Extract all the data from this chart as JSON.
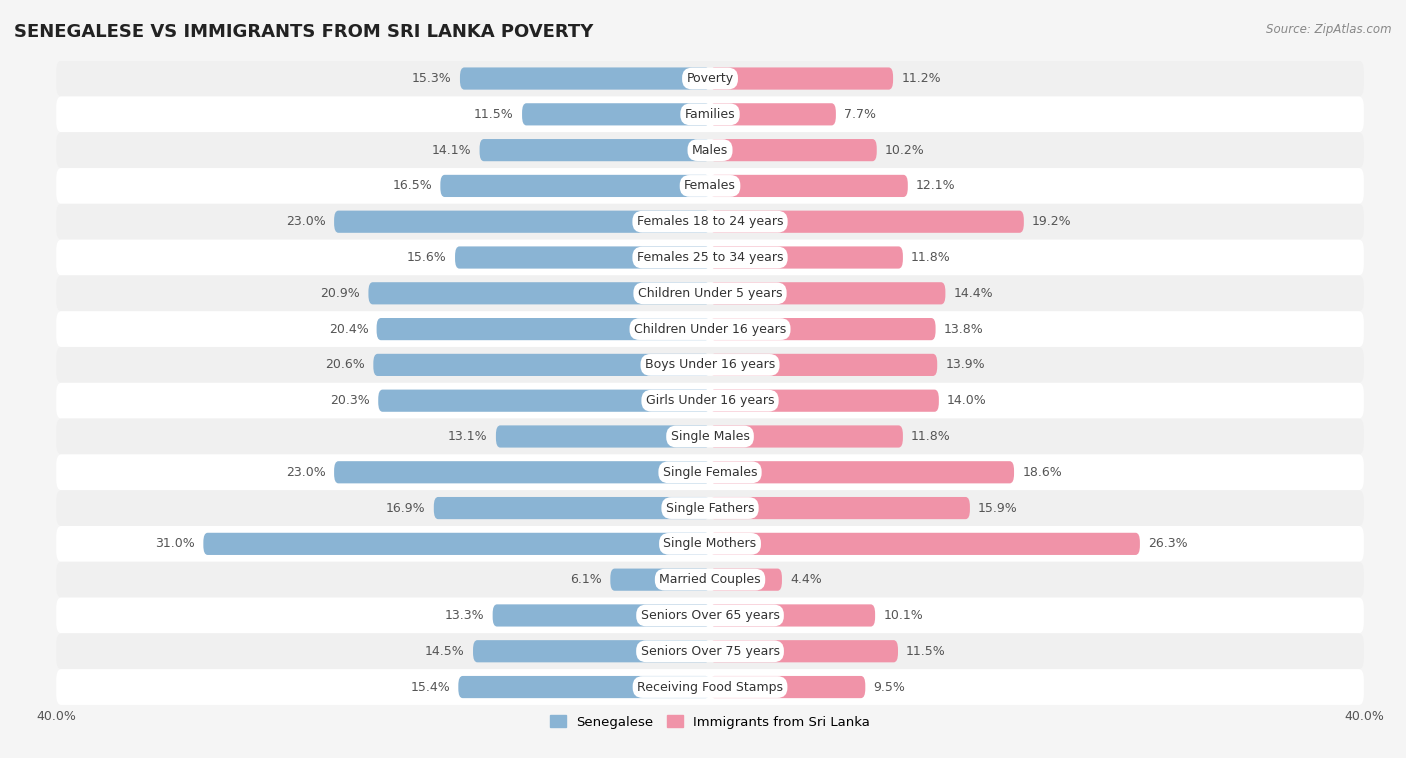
{
  "title": "SENEGALESE VS IMMIGRANTS FROM SRI LANKA POVERTY",
  "source": "Source: ZipAtlas.com",
  "categories": [
    "Poverty",
    "Families",
    "Males",
    "Females",
    "Females 18 to 24 years",
    "Females 25 to 34 years",
    "Children Under 5 years",
    "Children Under 16 years",
    "Boys Under 16 years",
    "Girls Under 16 years",
    "Single Males",
    "Single Females",
    "Single Fathers",
    "Single Mothers",
    "Married Couples",
    "Seniors Over 65 years",
    "Seniors Over 75 years",
    "Receiving Food Stamps"
  ],
  "senegalese": [
    15.3,
    11.5,
    14.1,
    16.5,
    23.0,
    15.6,
    20.9,
    20.4,
    20.6,
    20.3,
    13.1,
    23.0,
    16.9,
    31.0,
    6.1,
    13.3,
    14.5,
    15.4
  ],
  "sri_lanka": [
    11.2,
    7.7,
    10.2,
    12.1,
    19.2,
    11.8,
    14.4,
    13.8,
    13.9,
    14.0,
    11.8,
    18.6,
    15.9,
    26.3,
    4.4,
    10.1,
    11.5,
    9.5
  ],
  "senegalese_color": "#8ab4d4",
  "sri_lanka_color": "#f093a8",
  "row_colors": [
    "#f0f0f0",
    "#ffffff"
  ],
  "background_color": "#f5f5f5",
  "xlim": 40.0,
  "bar_height": 0.62,
  "legend_label_1": "Senegalese",
  "legend_label_2": "Immigrants from Sri Lanka",
  "title_fontsize": 13,
  "label_fontsize": 9,
  "value_fontsize": 9
}
